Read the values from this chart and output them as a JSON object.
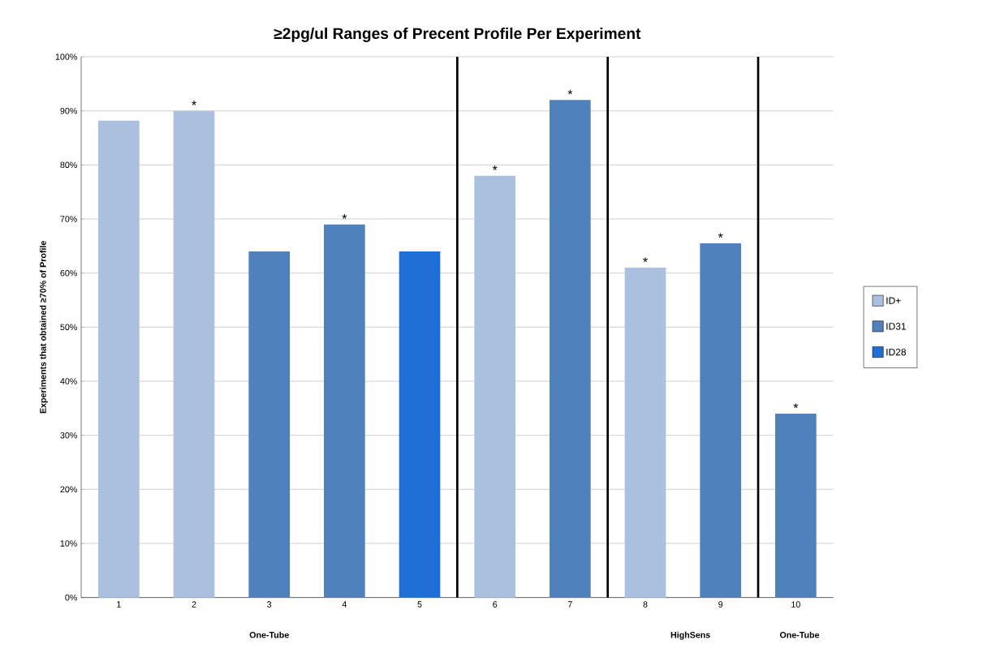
{
  "chart_data": {
    "type": "bar",
    "title": "≥2pg/ul Ranges of Precent Profile Per Experiment",
    "ylabel": "Experiments that obtained ≥70% of Profile",
    "x": [
      1,
      2,
      3,
      4,
      5,
      6,
      7,
      8,
      9,
      10
    ],
    "xlim": [
      0.5,
      10.5
    ],
    "xticks": [
      1,
      2,
      3,
      4,
      5,
      6,
      7,
      8,
      9,
      10
    ],
    "ylim": [
      0,
      100
    ],
    "yticks": [
      {
        "value": 0,
        "label": "0%"
      },
      {
        "value": 10,
        "label": "10%"
      },
      {
        "value": 20,
        "label": "20%"
      },
      {
        "value": 30,
        "label": "30%"
      },
      {
        "value": 40,
        "label": "40%"
      },
      {
        "value": 50,
        "label": "50%"
      },
      {
        "value": 60,
        "label": "60%"
      },
      {
        "value": 70,
        "label": "70%"
      },
      {
        "value": 80,
        "label": "80%"
      },
      {
        "value": 90,
        "label": "90%"
      },
      {
        "value": 100,
        "label": "100%"
      }
    ],
    "series": [
      {
        "name": "ID+",
        "color": "#a9c0de",
        "values": [
          88.2,
          90,
          null,
          null,
          null,
          78,
          null,
          61,
          null,
          null
        ]
      },
      {
        "name": "ID31",
        "color": "#4f81bd",
        "values": [
          null,
          null,
          64,
          69,
          null,
          null,
          92,
          null,
          65.5,
          34
        ]
      },
      {
        "name": "ID28",
        "color": "#1f6fd6",
        "values": [
          null,
          null,
          null,
          null,
          64,
          null,
          null,
          null,
          null,
          null
        ]
      }
    ],
    "ref_lines": [
      {
        "axis": "x",
        "value": 5.5,
        "color": "#000000"
      },
      {
        "axis": "x",
        "value": 7.5,
        "color": "#000000"
      },
      {
        "axis": "x",
        "value": 9.5,
        "color": "#000000"
      }
    ],
    "annotations": [
      "One-Tube",
      "HighSens",
      "One-Tube",
      {
        "text": "*",
        "x": 2,
        "y": 90
      },
      {
        "text": "*",
        "x": 4,
        "y": 69
      },
      {
        "text": "*",
        "x": 6,
        "y": 78
      },
      {
        "text": "*",
        "x": 7,
        "y": 92
      },
      {
        "text": "*",
        "x": 8,
        "y": 61
      },
      {
        "text": "*",
        "x": 9,
        "y": 65.5
      },
      {
        "text": "*",
        "x": 10,
        "y": 34
      }
    ],
    "grid": "y",
    "legend": "right"
  }
}
